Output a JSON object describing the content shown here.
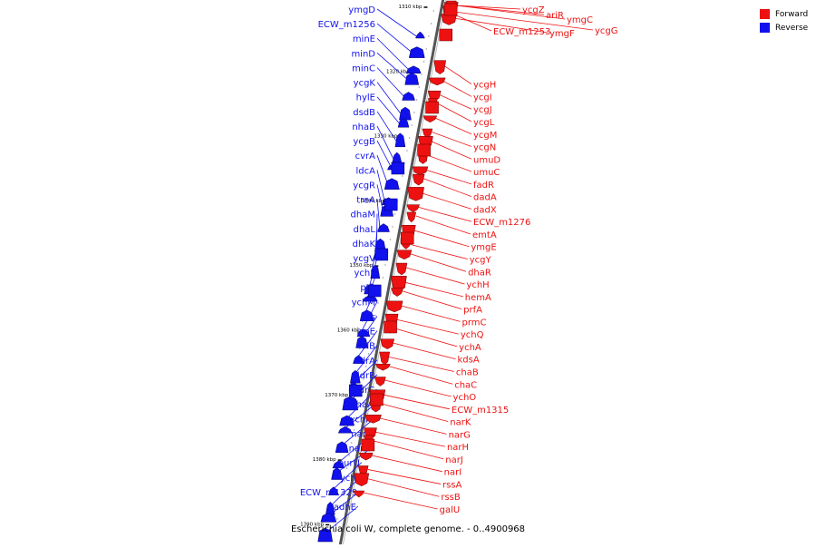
{
  "caption": "Escherichia coli W, complete genome. - 0..4900968",
  "legend": [
    {
      "label": "Forward",
      "color": "#ee1111"
    },
    {
      "label": "Reverse",
      "color": "#1111ee"
    }
  ],
  "colors": {
    "forward": "#ee1111",
    "reverse": "#1111ee",
    "backbone": "#555555"
  },
  "ticks": [
    "1310 kbp",
    "1320 kbp",
    "1330 kbp",
    "1340 kbp",
    "1350 kbp",
    "1360 kbp",
    "1370 kbp",
    "1380 kbp",
    "1390 kbp"
  ],
  "reverse_genes": [
    "ymgD",
    "ECW_m1256",
    "minE",
    "minD",
    "minC",
    "ycgK",
    "hylE",
    "dsdB",
    "nhaB",
    "ycgB",
    "cvrA",
    "ldcA",
    "ycgR",
    "treA",
    "dhaM",
    "dhaL",
    "dhaK",
    "ycgV",
    "ychF",
    "pth",
    "ychM",
    "prs",
    "ispE",
    "lolB",
    "ldrA",
    "ldrB",
    "ldrC",
    "chaA",
    "ychN",
    "narL",
    "narX",
    "purU",
    "ychJ",
    "ECW_m1329",
    "adhE"
  ],
  "forward_genes": [
    "ycgZ",
    "ariR",
    "ymgC",
    "ycgG",
    "ECW_m1253",
    "ymgF",
    "ycgH",
    "ycgI",
    "ycgJ",
    "ycgL",
    "ycgM",
    "ycgN",
    "umuD",
    "umuC",
    "fadR",
    "dadA",
    "dadX",
    "ECW_m1276",
    "emtA",
    "ymgE",
    "ycgY",
    "dhaR",
    "ychH",
    "hemA",
    "prfA",
    "prmC",
    "ychQ",
    "ychA",
    "kdsA",
    "chaB",
    "chaC",
    "ychO",
    "ECW_m1315",
    "narK",
    "narG",
    "narH",
    "narJ",
    "narI",
    "rssA",
    "rssB",
    "galU"
  ]
}
